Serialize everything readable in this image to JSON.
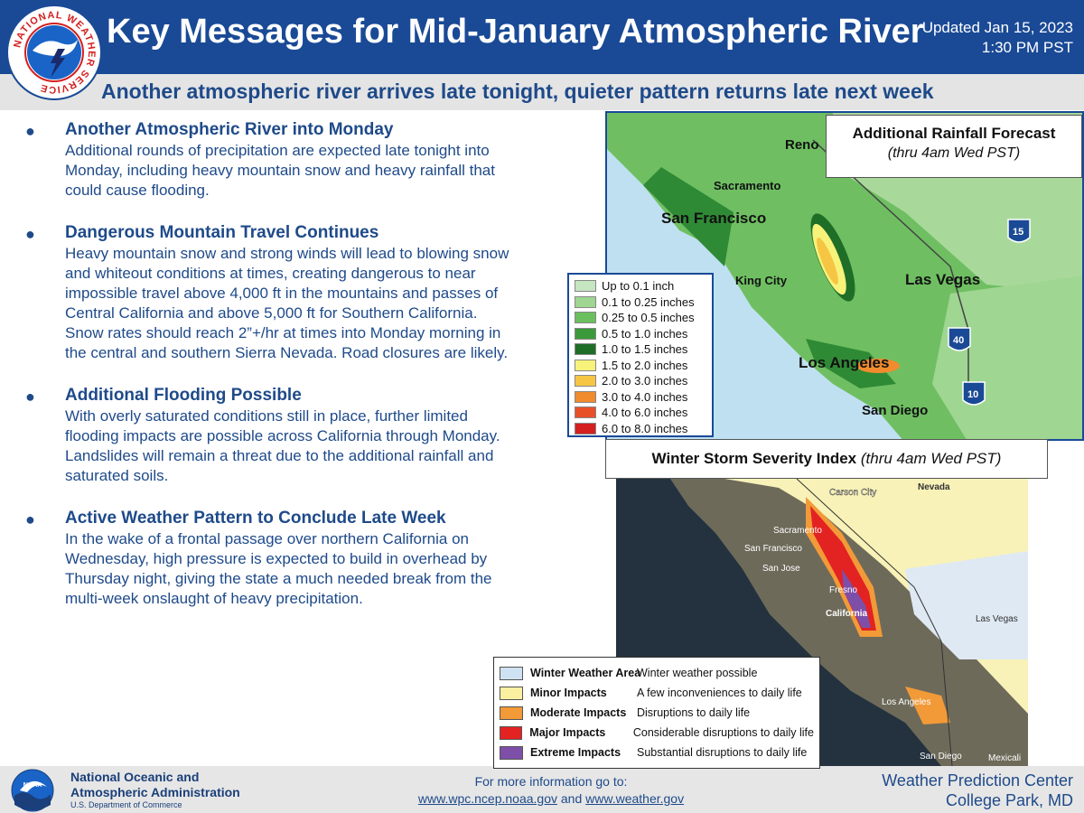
{
  "header": {
    "logo_text": "NATIONAL WEATHER SERVICE",
    "title": "Key Messages for Mid-January Atmospheric River",
    "updated_line1": "Updated Jan 15, 2023",
    "updated_line2": "1:30 PM PST",
    "subtitle": "Another atmospheric river arrives late tonight, quieter pattern returns late next week"
  },
  "bullets": [
    {
      "title": "Another Atmospheric River into Monday",
      "text": "Additional rounds of precipitation are expected late tonight into Monday, including heavy mountain snow and heavy rainfall that could cause flooding."
    },
    {
      "title": "Dangerous Mountain Travel Continues",
      "text": "Heavy mountain snow and strong winds will lead to blowing snow and whiteout conditions at times, creating dangerous to near impossible travel above 4,000 ft in the mountains and passes of Central California and above 5,000 ft for Southern California. Snow rates should reach 2”+/hr at times into Monday morning in the central and southern Sierra Nevada. Road closures are likely."
    },
    {
      "title": "Additional Flooding Possible",
      "text": "With overly saturated conditions still in place, further limited flooding impacts are possible across California through Monday. Landslides will remain a threat due to the additional rainfall and saturated soils."
    },
    {
      "title": "Active Weather Pattern to Conclude Late Week",
      "text": "In the wake of a frontal passage over northern California on Wednesday, high pressure is expected to build in overhead by Thursday night, giving the state a much needed break from the multi-week onslaught of heavy precipitation."
    }
  ],
  "rainfall_map": {
    "title": "Additional Rainfall Forecast",
    "subtitle": "(thru 4am Wed PST)",
    "cities": {
      "reno": "Reno",
      "sacramento": "Sacramento",
      "san_francisco": "San Francisco",
      "king_city": "King City",
      "las_vegas": "Las Vegas",
      "los_angeles": "Los Angeles",
      "san_diego": "San Diego"
    },
    "shields": {
      "i15": "15",
      "i40": "40",
      "i10": "10"
    },
    "legend": [
      {
        "label": "Up to 0.1 inch",
        "color": "#c5e6c0"
      },
      {
        "label": "0.1 to 0.25 inches",
        "color": "#9fd692"
      },
      {
        "label": "0.25 to 0.5 inches",
        "color": "#6cbf5e"
      },
      {
        "label": "0.5 to 1.0 inches",
        "color": "#3a9a3a"
      },
      {
        "label": "1.0 to 1.5 inches",
        "color": "#1e6e28"
      },
      {
        "label": "1.5 to 2.0 inches",
        "color": "#f7f27a"
      },
      {
        "label": "2.0 to 3.0 inches",
        "color": "#f6c544"
      },
      {
        "label": "3.0 to 4.0 inches",
        "color": "#f08c2e"
      },
      {
        "label": "4.0 to 6.0 inches",
        "color": "#e8502a"
      },
      {
        "label": "6.0 to 8.0 inches",
        "color": "#d42020"
      }
    ]
  },
  "wssi_map": {
    "title_bold": "Winter Storm Severity Index",
    "title_italic": "(thru 4am Wed PST)",
    "cities": {
      "carson_city": "Carson City",
      "nevada": "Nevada",
      "sacramento": "Sacramento",
      "san_francisco": "San Francisco",
      "san_jose": "San Jose",
      "fresno": "Fresno",
      "california": "California",
      "las_vegas": "Las Vegas",
      "los_angeles": "Los Angeles",
      "san_diego": "San Diego",
      "mexicali": "Mexicali"
    },
    "legend": [
      {
        "category": "Winter Weather Area",
        "description": "Winter weather possible",
        "color": "#cfe2f3"
      },
      {
        "category": "Minor Impacts",
        "description": "A few inconveniences to daily life",
        "color": "#fbf0a0"
      },
      {
        "category": "Moderate Impacts",
        "description": "Disruptions to daily life",
        "color": "#f29a38"
      },
      {
        "category": "Major Impacts",
        "description": "Considerable disruptions to daily life",
        "color": "#e32222"
      },
      {
        "category": "Extreme Impacts",
        "description": "Substantial disruptions to daily life",
        "color": "#7e4fa8"
      }
    ]
  },
  "footer": {
    "noaa_logo_text": "NOAA",
    "noaa_line1": "National Oceanic and",
    "noaa_line2": "Atmospheric Administration",
    "noaa_dept": "U.S. Department of Commerce",
    "more_info": "For more information go to:",
    "link1": "www.wpc.ncep.noaa.gov",
    "and_text": "and",
    "link2": "www.weather.gov",
    "wpc_line1": "Weather Prediction Center",
    "wpc_line2": "College Park, MD"
  }
}
